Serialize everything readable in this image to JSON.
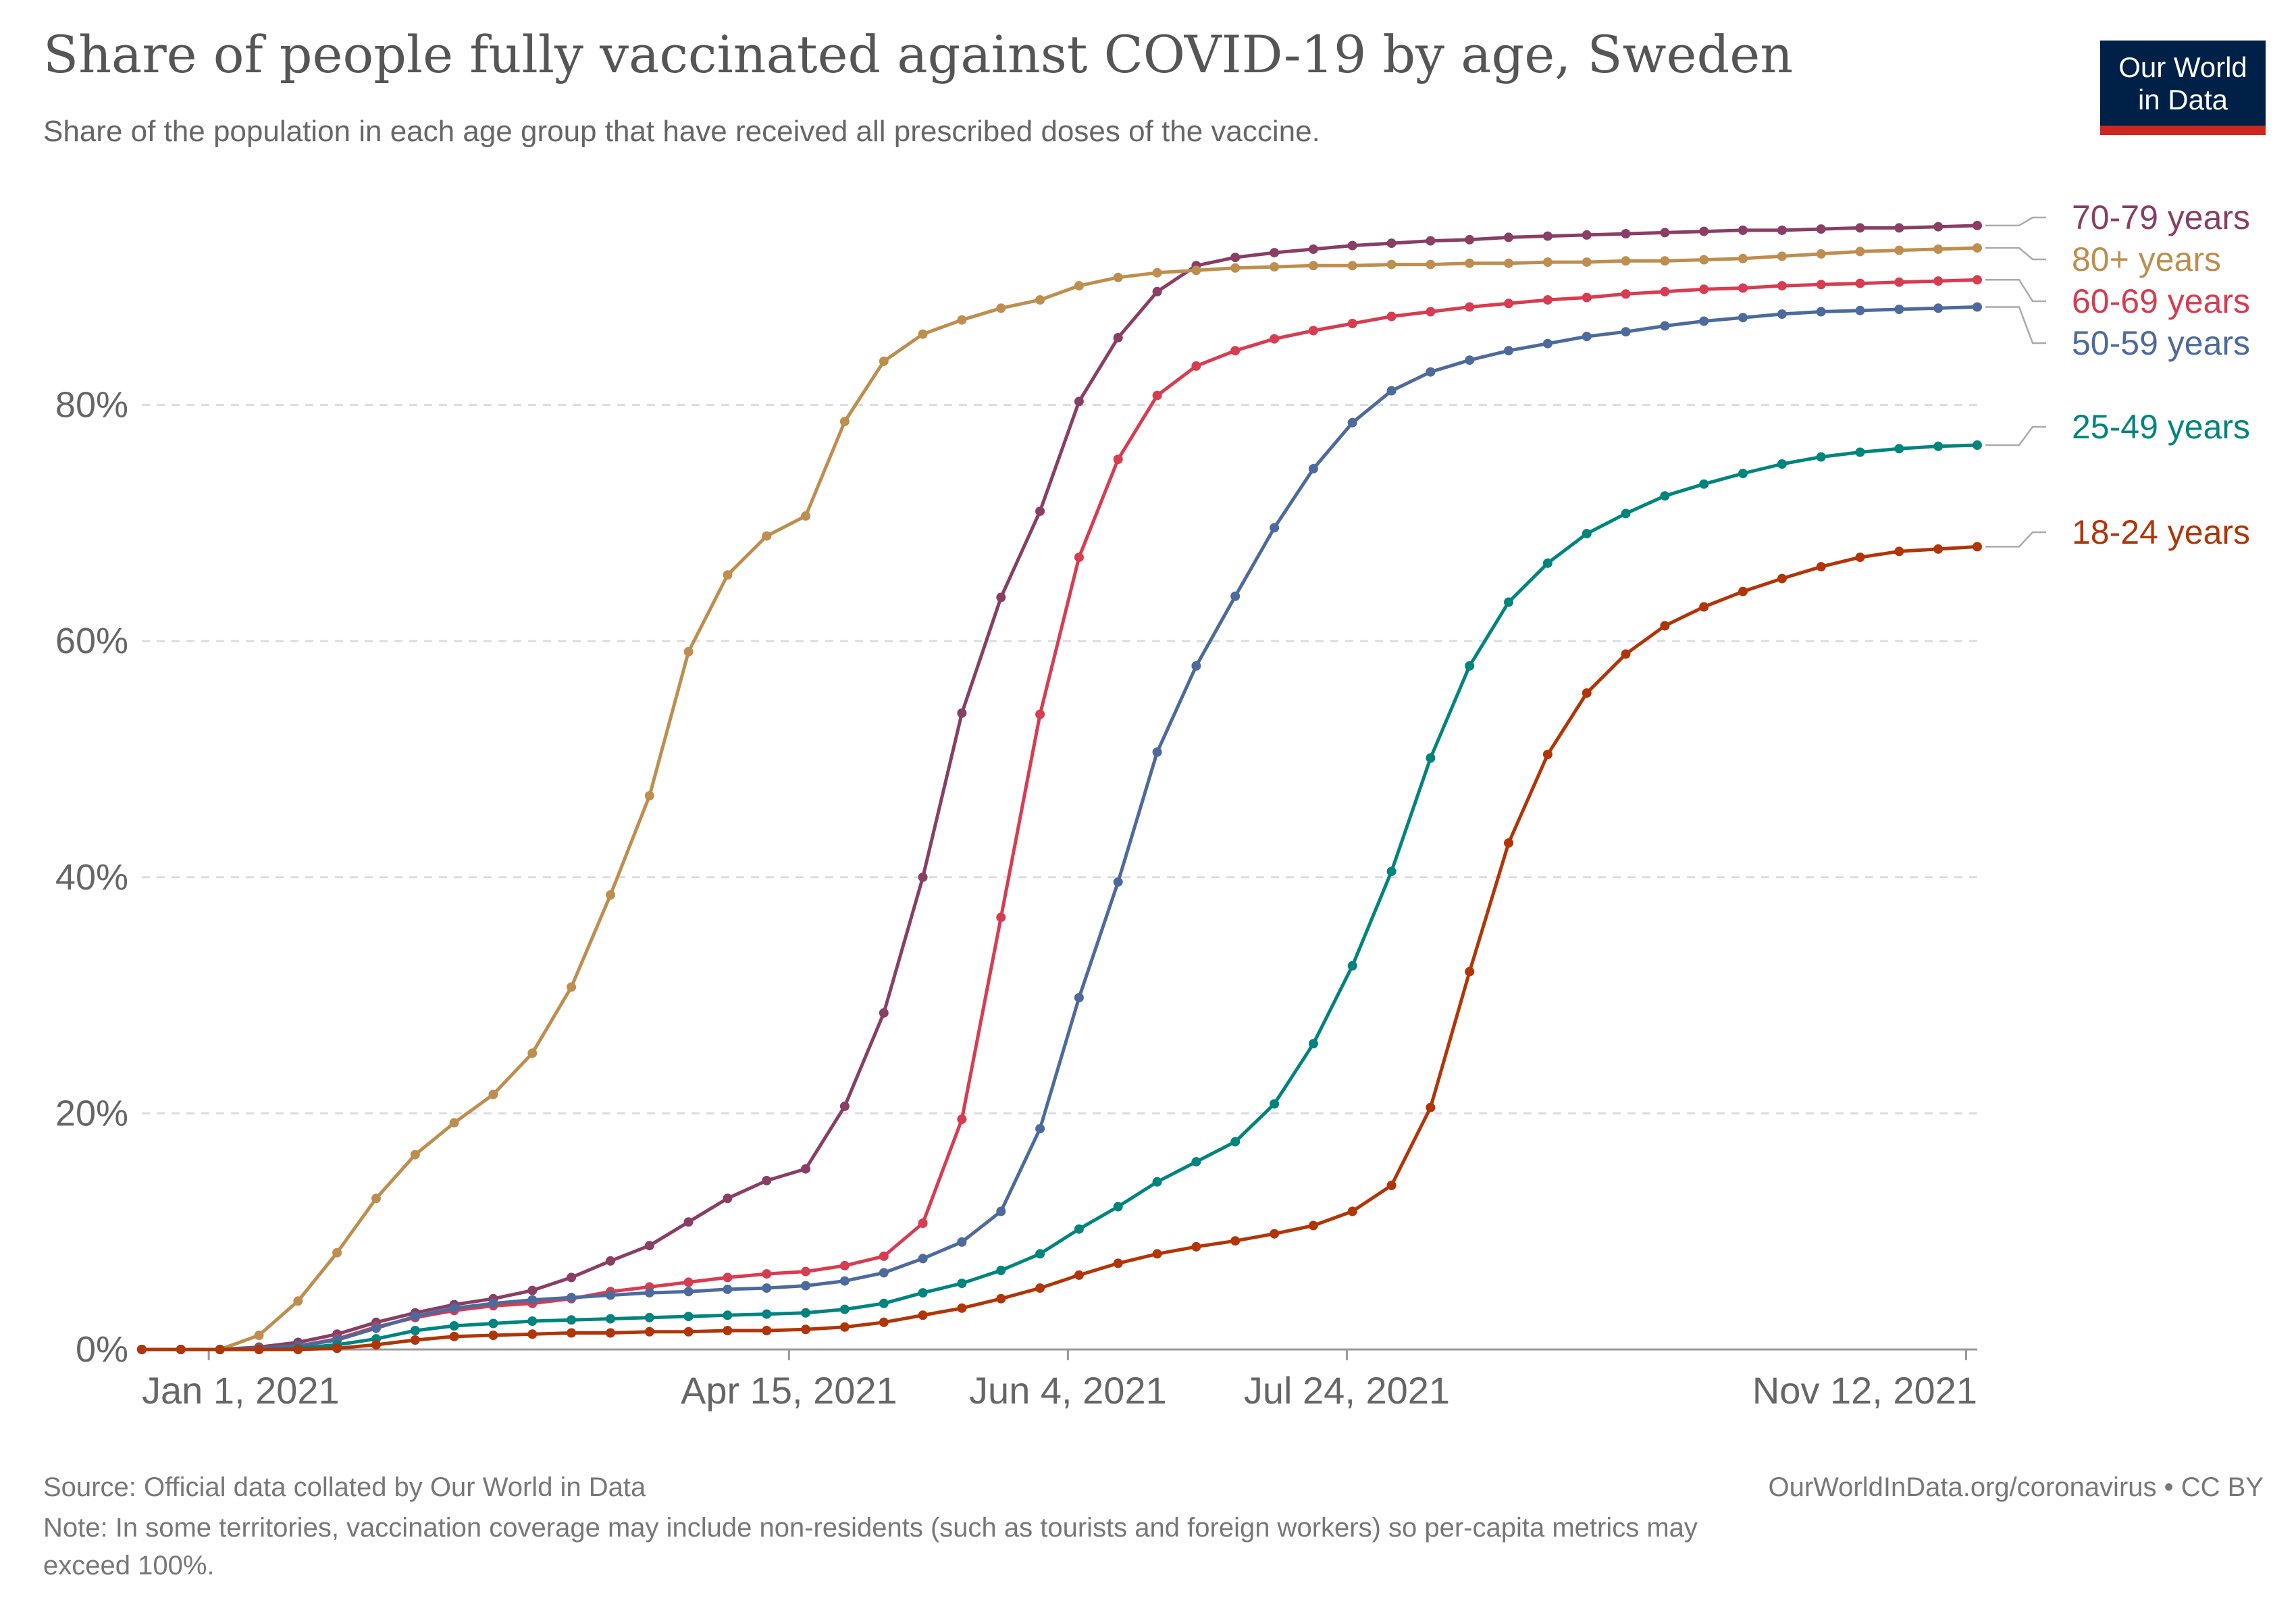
{
  "header": {
    "title": "Share of people fully vaccinated against COVID-19 by age, Sweden",
    "subtitle": "Share of the population in each age group that have received all prescribed doses of the vaccine."
  },
  "logo": {
    "line1": "Our World",
    "line2": "in Data"
  },
  "footer": {
    "source": "Source: Official data collated by Our World in Data",
    "attribution": "OurWorldInData.org/coronavirus • CC BY",
    "note_line1": "Note: In some territories, vaccination coverage may include non-residents (such as tourists and foreign workers) so per-capita metrics may",
    "note_line2": "exceed 100%."
  },
  "colors": {
    "80plus": "#be8e4f",
    "70_79": "#883e65",
    "60_69": "#d73c50",
    "50_59": "#4c6a9c",
    "25_49": "#00847e",
    "18_24": "#b13507",
    "grid": "#dddddd",
    "axis_text": "#666666"
  },
  "chart_data": {
    "type": "line",
    "title": "Share of people fully vaccinated against COVID-19 by age, Sweden",
    "ylabel": "",
    "xlabel": "",
    "ylim": [
      0,
      100
    ],
    "y_ticks": [
      0,
      20,
      40,
      60,
      80
    ],
    "y_tick_labels": [
      "0%",
      "20%",
      "40%",
      "60%",
      "80%"
    ],
    "x_range": [
      "2020-12-20",
      "2021-11-14"
    ],
    "x_ticks": [
      "2021-01-01",
      "2021-04-15",
      "2021-06-04",
      "2021-07-24",
      "2021-11-12"
    ],
    "x_tick_labels": [
      "Jan 1, 2021",
      "Apr 15, 2021",
      "Jun 4, 2021",
      "Jul 24, 2021",
      "Nov 12, 2021"
    ],
    "grid": "horizontal dashed",
    "legend": "right, labels at line ends",
    "x": [
      "2020-12-20",
      "2020-12-27",
      "2021-01-03",
      "2021-01-10",
      "2021-01-17",
      "2021-01-24",
      "2021-01-31",
      "2021-02-07",
      "2021-02-14",
      "2021-02-21",
      "2021-02-28",
      "2021-03-07",
      "2021-03-14",
      "2021-03-21",
      "2021-03-28",
      "2021-04-04",
      "2021-04-11",
      "2021-04-18",
      "2021-04-25",
      "2021-05-02",
      "2021-05-09",
      "2021-05-16",
      "2021-05-23",
      "2021-05-30",
      "2021-06-06",
      "2021-06-13",
      "2021-06-20",
      "2021-06-27",
      "2021-07-04",
      "2021-07-11",
      "2021-07-18",
      "2021-07-25",
      "2021-08-01",
      "2021-08-08",
      "2021-08-15",
      "2021-08-22",
      "2021-08-29",
      "2021-09-05",
      "2021-09-12",
      "2021-09-19",
      "2021-09-26",
      "2021-10-03",
      "2021-10-10",
      "2021-10-17",
      "2021-10-24",
      "2021-10-31",
      "2021-11-07",
      "2021-11-14"
    ],
    "series": [
      {
        "name": "70-79 years",
        "color_key": "70_79",
        "values": [
          0,
          0,
          0,
          0.2,
          0.6,
          1.3,
          2.3,
          3.1,
          3.8,
          4.3,
          5.0,
          6.1,
          7.5,
          8.8,
          10.8,
          12.8,
          14.3,
          15.3,
          20.6,
          28.5,
          40.0,
          53.9,
          63.7,
          71.0,
          80.3,
          85.7,
          89.6,
          91.8,
          92.5,
          92.9,
          93.2,
          93.5,
          93.7,
          93.9,
          94.0,
          94.2,
          94.3,
          94.4,
          94.5,
          94.6,
          94.7,
          94.8,
          94.8,
          94.9,
          95.0,
          95.0,
          95.1,
          95.2
        ]
      },
      {
        "name": "80+ years",
        "color_key": "80plus",
        "values": [
          0,
          0,
          0,
          1.2,
          4.1,
          8.2,
          12.8,
          16.5,
          19.2,
          21.6,
          25.1,
          30.7,
          38.5,
          46.9,
          59.1,
          65.6,
          68.9,
          70.6,
          78.6,
          83.7,
          86.0,
          87.2,
          88.2,
          88.9,
          90.1,
          90.8,
          91.2,
          91.4,
          91.6,
          91.7,
          91.8,
          91.8,
          91.9,
          91.9,
          92.0,
          92.0,
          92.1,
          92.1,
          92.2,
          92.2,
          92.3,
          92.4,
          92.6,
          92.8,
          93.0,
          93.1,
          93.2,
          93.3
        ]
      },
      {
        "name": "60-69 years",
        "color_key": "60_69",
        "values": [
          0,
          0,
          0,
          0.1,
          0.3,
          0.9,
          1.9,
          2.7,
          3.3,
          3.7,
          3.9,
          4.3,
          4.9,
          5.3,
          5.7,
          6.1,
          6.4,
          6.6,
          7.1,
          7.9,
          10.7,
          19.5,
          36.6,
          53.8,
          67.1,
          75.4,
          80.8,
          83.3,
          84.6,
          85.6,
          86.3,
          86.9,
          87.5,
          87.9,
          88.3,
          88.6,
          88.9,
          89.1,
          89.4,
          89.6,
          89.8,
          89.9,
          90.1,
          90.2,
          90.3,
          90.4,
          90.5,
          90.6
        ]
      },
      {
        "name": "50-59 years",
        "color_key": "50_59",
        "values": [
          0,
          0,
          0,
          0.1,
          0.3,
          0.8,
          1.8,
          2.8,
          3.5,
          3.9,
          4.2,
          4.4,
          4.6,
          4.8,
          4.9,
          5.1,
          5.2,
          5.4,
          5.8,
          6.5,
          7.7,
          9.1,
          11.7,
          18.7,
          29.8,
          39.6,
          50.6,
          57.9,
          63.8,
          69.6,
          74.6,
          78.5,
          81.2,
          82.8,
          83.8,
          84.6,
          85.2,
          85.8,
          86.2,
          86.7,
          87.1,
          87.4,
          87.7,
          87.9,
          88.0,
          88.1,
          88.2,
          88.3
        ]
      },
      {
        "name": "25-49 years",
        "color_key": "25_49",
        "values": [
          0,
          0,
          0,
          0,
          0.1,
          0.4,
          0.9,
          1.6,
          2.0,
          2.2,
          2.4,
          2.5,
          2.6,
          2.7,
          2.8,
          2.9,
          3.0,
          3.1,
          3.4,
          3.9,
          4.8,
          5.6,
          6.7,
          8.1,
          10.2,
          12.1,
          14.2,
          15.9,
          17.6,
          20.8,
          25.9,
          32.5,
          40.5,
          50.1,
          57.9,
          63.3,
          66.6,
          69.1,
          70.8,
          72.3,
          73.3,
          74.2,
          75.0,
          75.6,
          76.0,
          76.3,
          76.5,
          76.6
        ]
      },
      {
        "name": "18-24 years",
        "color_key": "18_24",
        "values": [
          0,
          0,
          0,
          0,
          0,
          0.1,
          0.4,
          0.8,
          1.1,
          1.2,
          1.3,
          1.4,
          1.4,
          1.5,
          1.5,
          1.6,
          1.6,
          1.7,
          1.9,
          2.3,
          2.9,
          3.5,
          4.3,
          5.2,
          6.3,
          7.3,
          8.1,
          8.7,
          9.2,
          9.8,
          10.5,
          11.7,
          13.9,
          20.5,
          32.0,
          42.9,
          50.4,
          55.6,
          58.9,
          61.3,
          62.9,
          64.2,
          65.3,
          66.3,
          67.1,
          67.6,
          67.8,
          68.0
        ]
      }
    ]
  }
}
